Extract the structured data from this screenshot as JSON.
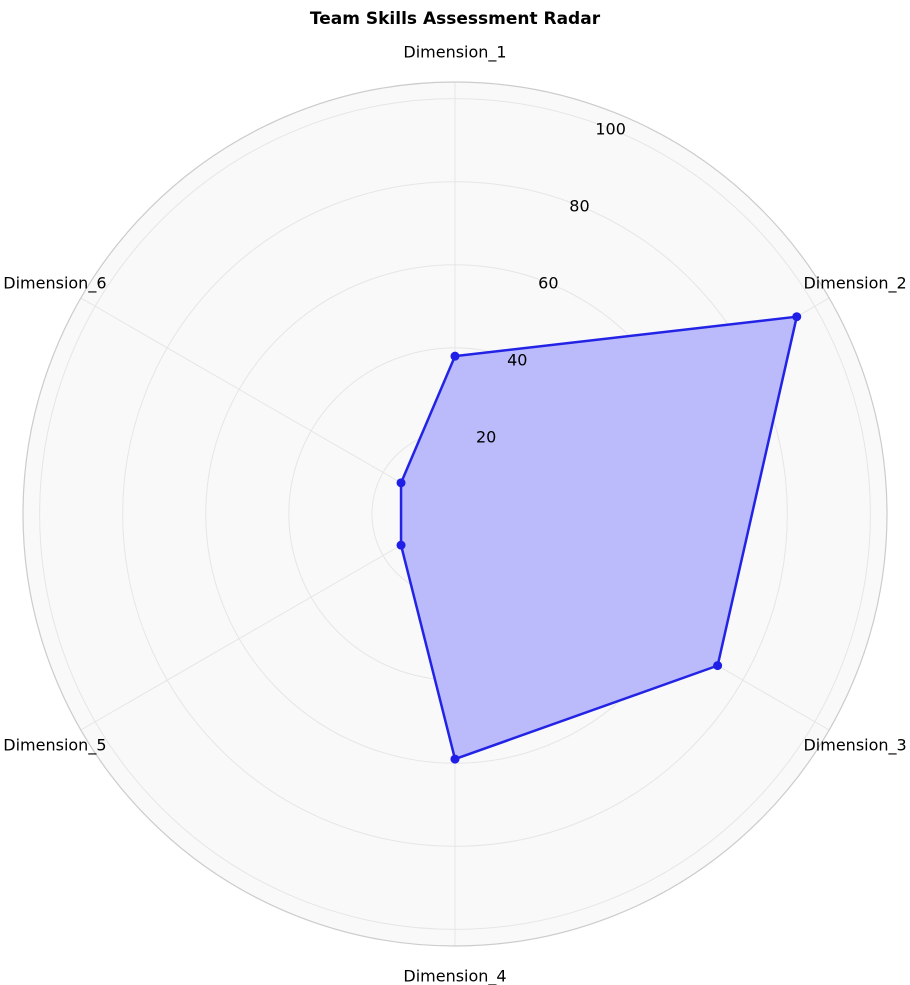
{
  "chart_data": {
    "type": "radar",
    "title": "Team Skills Assessment Radar",
    "categories": [
      "Dimension_1",
      "Dimension_2",
      "Dimension_3",
      "Dimension_4",
      "Dimension_5",
      "Dimension_6"
    ],
    "series": [
      {
        "values": [
          38,
          95,
          73,
          59,
          15,
          15
        ]
      }
    ],
    "rlim": [
      0,
      104
    ],
    "rticks": [
      20,
      40,
      60,
      80,
      100
    ],
    "rtick_labels": [
      "20",
      "40",
      "60",
      "80",
      "100"
    ],
    "grid": true,
    "colors": {
      "line": "#2323e6",
      "fill": "#bbbbfb",
      "marker": "#1f1fe8",
      "plot_background": "#f9f9f9",
      "grid": "#e6e6e6",
      "outer_ring": "#cccccc"
    }
  }
}
